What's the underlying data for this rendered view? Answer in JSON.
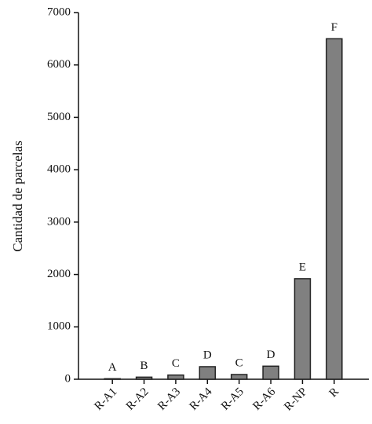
{
  "chart_data": {
    "type": "bar",
    "y_label": "Cantidad de parcelas",
    "categories": [
      "R-A1",
      "R-A2",
      "R-A3",
      "R-A4",
      "R-A5",
      "R-A6",
      "R-NP",
      "R"
    ],
    "values": [
      10,
      40,
      80,
      240,
      90,
      250,
      1920,
      6500
    ],
    "group_labels": [
      "A",
      "B",
      "C",
      "D",
      "C",
      "D",
      "E",
      "F"
    ],
    "color": "#808080",
    "ylim": [
      0,
      7000
    ],
    "yticks": [
      0,
      1000,
      2000,
      3000,
      4000,
      5000,
      6000,
      7000
    ]
  }
}
